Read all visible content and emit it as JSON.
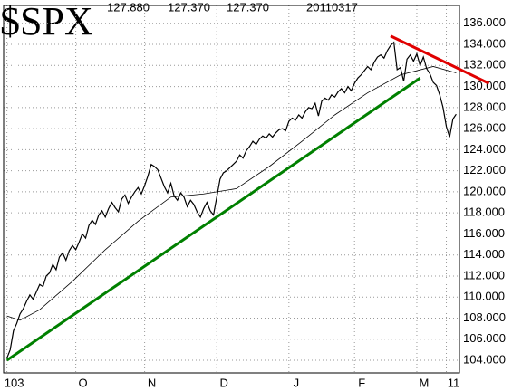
{
  "chart_data": {
    "type": "line",
    "title": "$SPX",
    "header_values": [
      "127.880",
      "127.370",
      "127.370",
      "20110317"
    ],
    "x": [
      0,
      1,
      2,
      3,
      4,
      5,
      6,
      7,
      8,
      9,
      10,
      11,
      12,
      13,
      14,
      15,
      16,
      17,
      18,
      19,
      20,
      21,
      22,
      23,
      24,
      25,
      26,
      27,
      28,
      29,
      30,
      31,
      32,
      33,
      34,
      35,
      36,
      37,
      38,
      39,
      40,
      41,
      42,
      43,
      44,
      45,
      46,
      47,
      48,
      49,
      50,
      51,
      52,
      53,
      54,
      55,
      56,
      57,
      58,
      59,
      60,
      61,
      62,
      63,
      64,
      65,
      66,
      67,
      68,
      69,
      70,
      71,
      72,
      73,
      74,
      75,
      76,
      77,
      78,
      79,
      80,
      81,
      82,
      83,
      84,
      85,
      86,
      87,
      88,
      89,
      90,
      91,
      92,
      93,
      94,
      95,
      96,
      97,
      98,
      99,
      100,
      101,
      102,
      103,
      104,
      105,
      106,
      107,
      108,
      109,
      110,
      111,
      112,
      113,
      114,
      115,
      116,
      117,
      118,
      119,
      120,
      121,
      122,
      123,
      124,
      125,
      126,
      127,
      128,
      129,
      130,
      131,
      132,
      133,
      134,
      135,
      136,
      137
    ],
    "series": [
      {
        "color": "#000000",
        "width": 1.2,
        "values": [
          104.2,
          105.0,
          106.8,
          107.5,
          108.4,
          108.9,
          109.6,
          110.2,
          109.8,
          110.5,
          111.2,
          111.0,
          112.0,
          112.3,
          113.1,
          112.6,
          113.8,
          114.2,
          113.5,
          114.4,
          114.9,
          114.5,
          115.2,
          116.0,
          115.6,
          116.8,
          117.3,
          116.9,
          117.8,
          118.2,
          117.6,
          118.4,
          119.0,
          118.5,
          118.1,
          119.3,
          119.7,
          118.9,
          119.5,
          120.0,
          120.4,
          119.8,
          120.6,
          121.5,
          122.6,
          122.4,
          122.1,
          121.3,
          120.5,
          119.9,
          120.8,
          119.6,
          119.2,
          119.9,
          119.5,
          118.6,
          119.2,
          118.8,
          118.1,
          117.6,
          118.4,
          119.0,
          118.2,
          117.8,
          119.5,
          121.2,
          121.8,
          122.0,
          122.3,
          122.6,
          122.9,
          123.5,
          123.2,
          123.9,
          124.3,
          124.8,
          124.5,
          125.0,
          125.3,
          125.1,
          125.5,
          125.2,
          125.6,
          125.9,
          126.0,
          125.8,
          126.7,
          127.0,
          126.8,
          127.3,
          127.0,
          127.6,
          128.0,
          127.9,
          128.4,
          127.2,
          128.6,
          128.9,
          128.7,
          129.2,
          129.0,
          129.5,
          129.8,
          129.4,
          130.0,
          129.6,
          130.3,
          130.8,
          131.1,
          131.5,
          131.9,
          131.6,
          132.3,
          132.8,
          133.0,
          132.7,
          133.4,
          133.9,
          134.2,
          131.6,
          131.8,
          130.5,
          132.6,
          133.0,
          132.4,
          133.1,
          132.0,
          132.8,
          131.7,
          131.2,
          130.4,
          130.1,
          129.2,
          128.0,
          126.2,
          125.2,
          126.9,
          127.37
        ]
      },
      {
        "color": "#000000",
        "width": 0.8,
        "x": [
          0,
          4,
          10,
          20,
          30,
          40,
          50,
          60,
          70,
          80,
          90,
          100,
          110,
          120,
          130,
          137
        ],
        "values": [
          108.2,
          107.8,
          108.8,
          111.5,
          114.5,
          117.2,
          119.5,
          119.8,
          120.3,
          122.4,
          124.8,
          127.3,
          129.4,
          131.1,
          131.9,
          131.3
        ]
      },
      {
        "color": "#008000",
        "width": 3,
        "x": [
          0,
          126
        ],
        "values": [
          104.0,
          130.8
        ]
      },
      {
        "color": "#e00000",
        "width": 3,
        "x": [
          117,
          147
        ],
        "values": [
          134.8,
          130.3
        ]
      }
    ],
    "xlim": [
      -1,
      138
    ],
    "xticks": [
      {
        "value": 0,
        "label": "103"
      },
      {
        "value": 21,
        "label": "O"
      },
      {
        "value": 42,
        "label": "N"
      },
      {
        "value": 64,
        "label": "D"
      },
      {
        "value": 86,
        "label": "J"
      },
      {
        "value": 106,
        "label": "F"
      },
      {
        "value": 125,
        "label": "M"
      },
      {
        "value": 134,
        "label": "11"
      }
    ],
    "ylim": [
      102.8,
      137.7
    ],
    "yticks": [
      {
        "value": 104,
        "label": "104.000"
      },
      {
        "value": 106,
        "label": "106.000"
      },
      {
        "value": 108,
        "label": "108.000"
      },
      {
        "value": 110,
        "label": "110.000"
      },
      {
        "value": 112,
        "label": "112.000"
      },
      {
        "value": 114,
        "label": "114.000"
      },
      {
        "value": 116,
        "label": "116.000"
      },
      {
        "value": 118,
        "label": "118.000"
      },
      {
        "value": 120,
        "label": "120.000"
      },
      {
        "value": 122,
        "label": "122.000"
      },
      {
        "value": 124,
        "label": "124.000"
      },
      {
        "value": 126,
        "label": "126.000"
      },
      {
        "value": 128,
        "label": "128.000"
      },
      {
        "value": 130,
        "label": "130.000"
      },
      {
        "value": 132,
        "label": "132.000"
      },
      {
        "value": 134,
        "label": "134.000"
      },
      {
        "value": 136,
        "label": "136.000"
      }
    ],
    "grid": true
  }
}
